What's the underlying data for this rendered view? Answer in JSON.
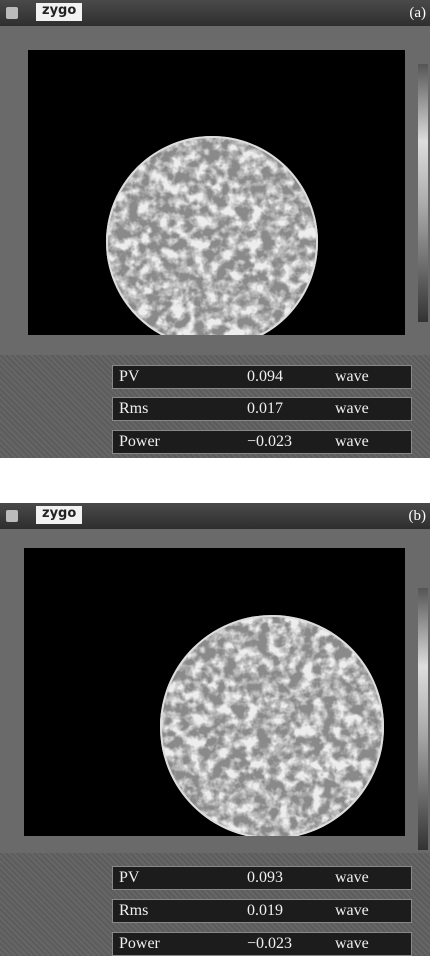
{
  "panels": [
    {
      "logo": "zygo",
      "label": "(a)",
      "rows": [
        [
          "PV",
          "0.094",
          "wave"
        ],
        [
          "Rms",
          "0.017",
          "wave"
        ],
        [
          "Power",
          "−0.023",
          "wave"
        ]
      ]
    },
    {
      "logo": "zygo",
      "label": "(b)",
      "rows": [
        [
          "PV",
          "0.093",
          "wave"
        ],
        [
          "Rms",
          "0.019",
          "wave"
        ],
        [
          "Power",
          "−0.023",
          "wave"
        ]
      ]
    }
  ]
}
